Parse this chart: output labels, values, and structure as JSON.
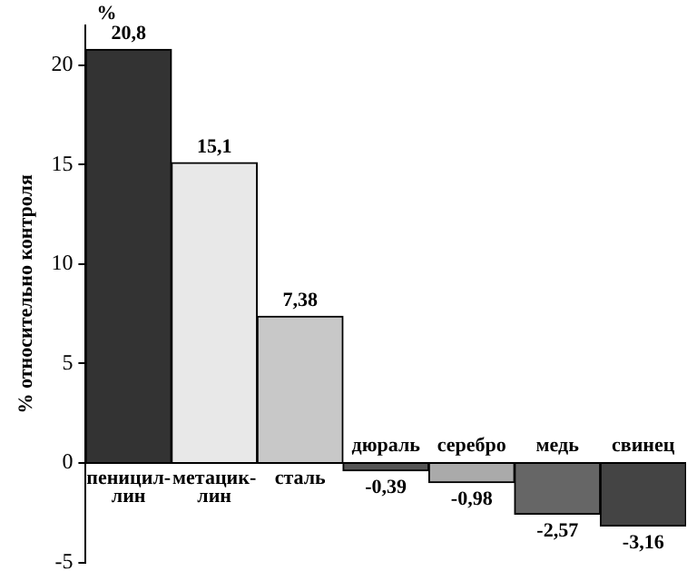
{
  "chart_data": {
    "type": "bar",
    "ylabel": "% относительно контроля",
    "annotations": [
      "%"
    ],
    "categories": [
      "пеницил-\nлин",
      "метацик-\nлин",
      "сталь",
      "дюраль",
      "серебро",
      "медь",
      "свинец"
    ],
    "values": [
      20.8,
      15.1,
      7.38,
      -0.39,
      -0.98,
      -2.57,
      -3.16
    ],
    "value_labels": [
      "20,8",
      "15,1",
      "7,38",
      "-0,39",
      "-0,98",
      "-2,57",
      "-3,16"
    ],
    "colors": [
      "#333333",
      "#e8e8e8",
      "#c8c8c8",
      "#555555",
      "#aaaaaa",
      "#666666",
      "#444444"
    ],
    "ylim": [
      -5,
      22
    ],
    "yticks": [
      -5,
      0,
      5,
      10,
      15,
      20
    ],
    "grid": false,
    "legend": false
  }
}
